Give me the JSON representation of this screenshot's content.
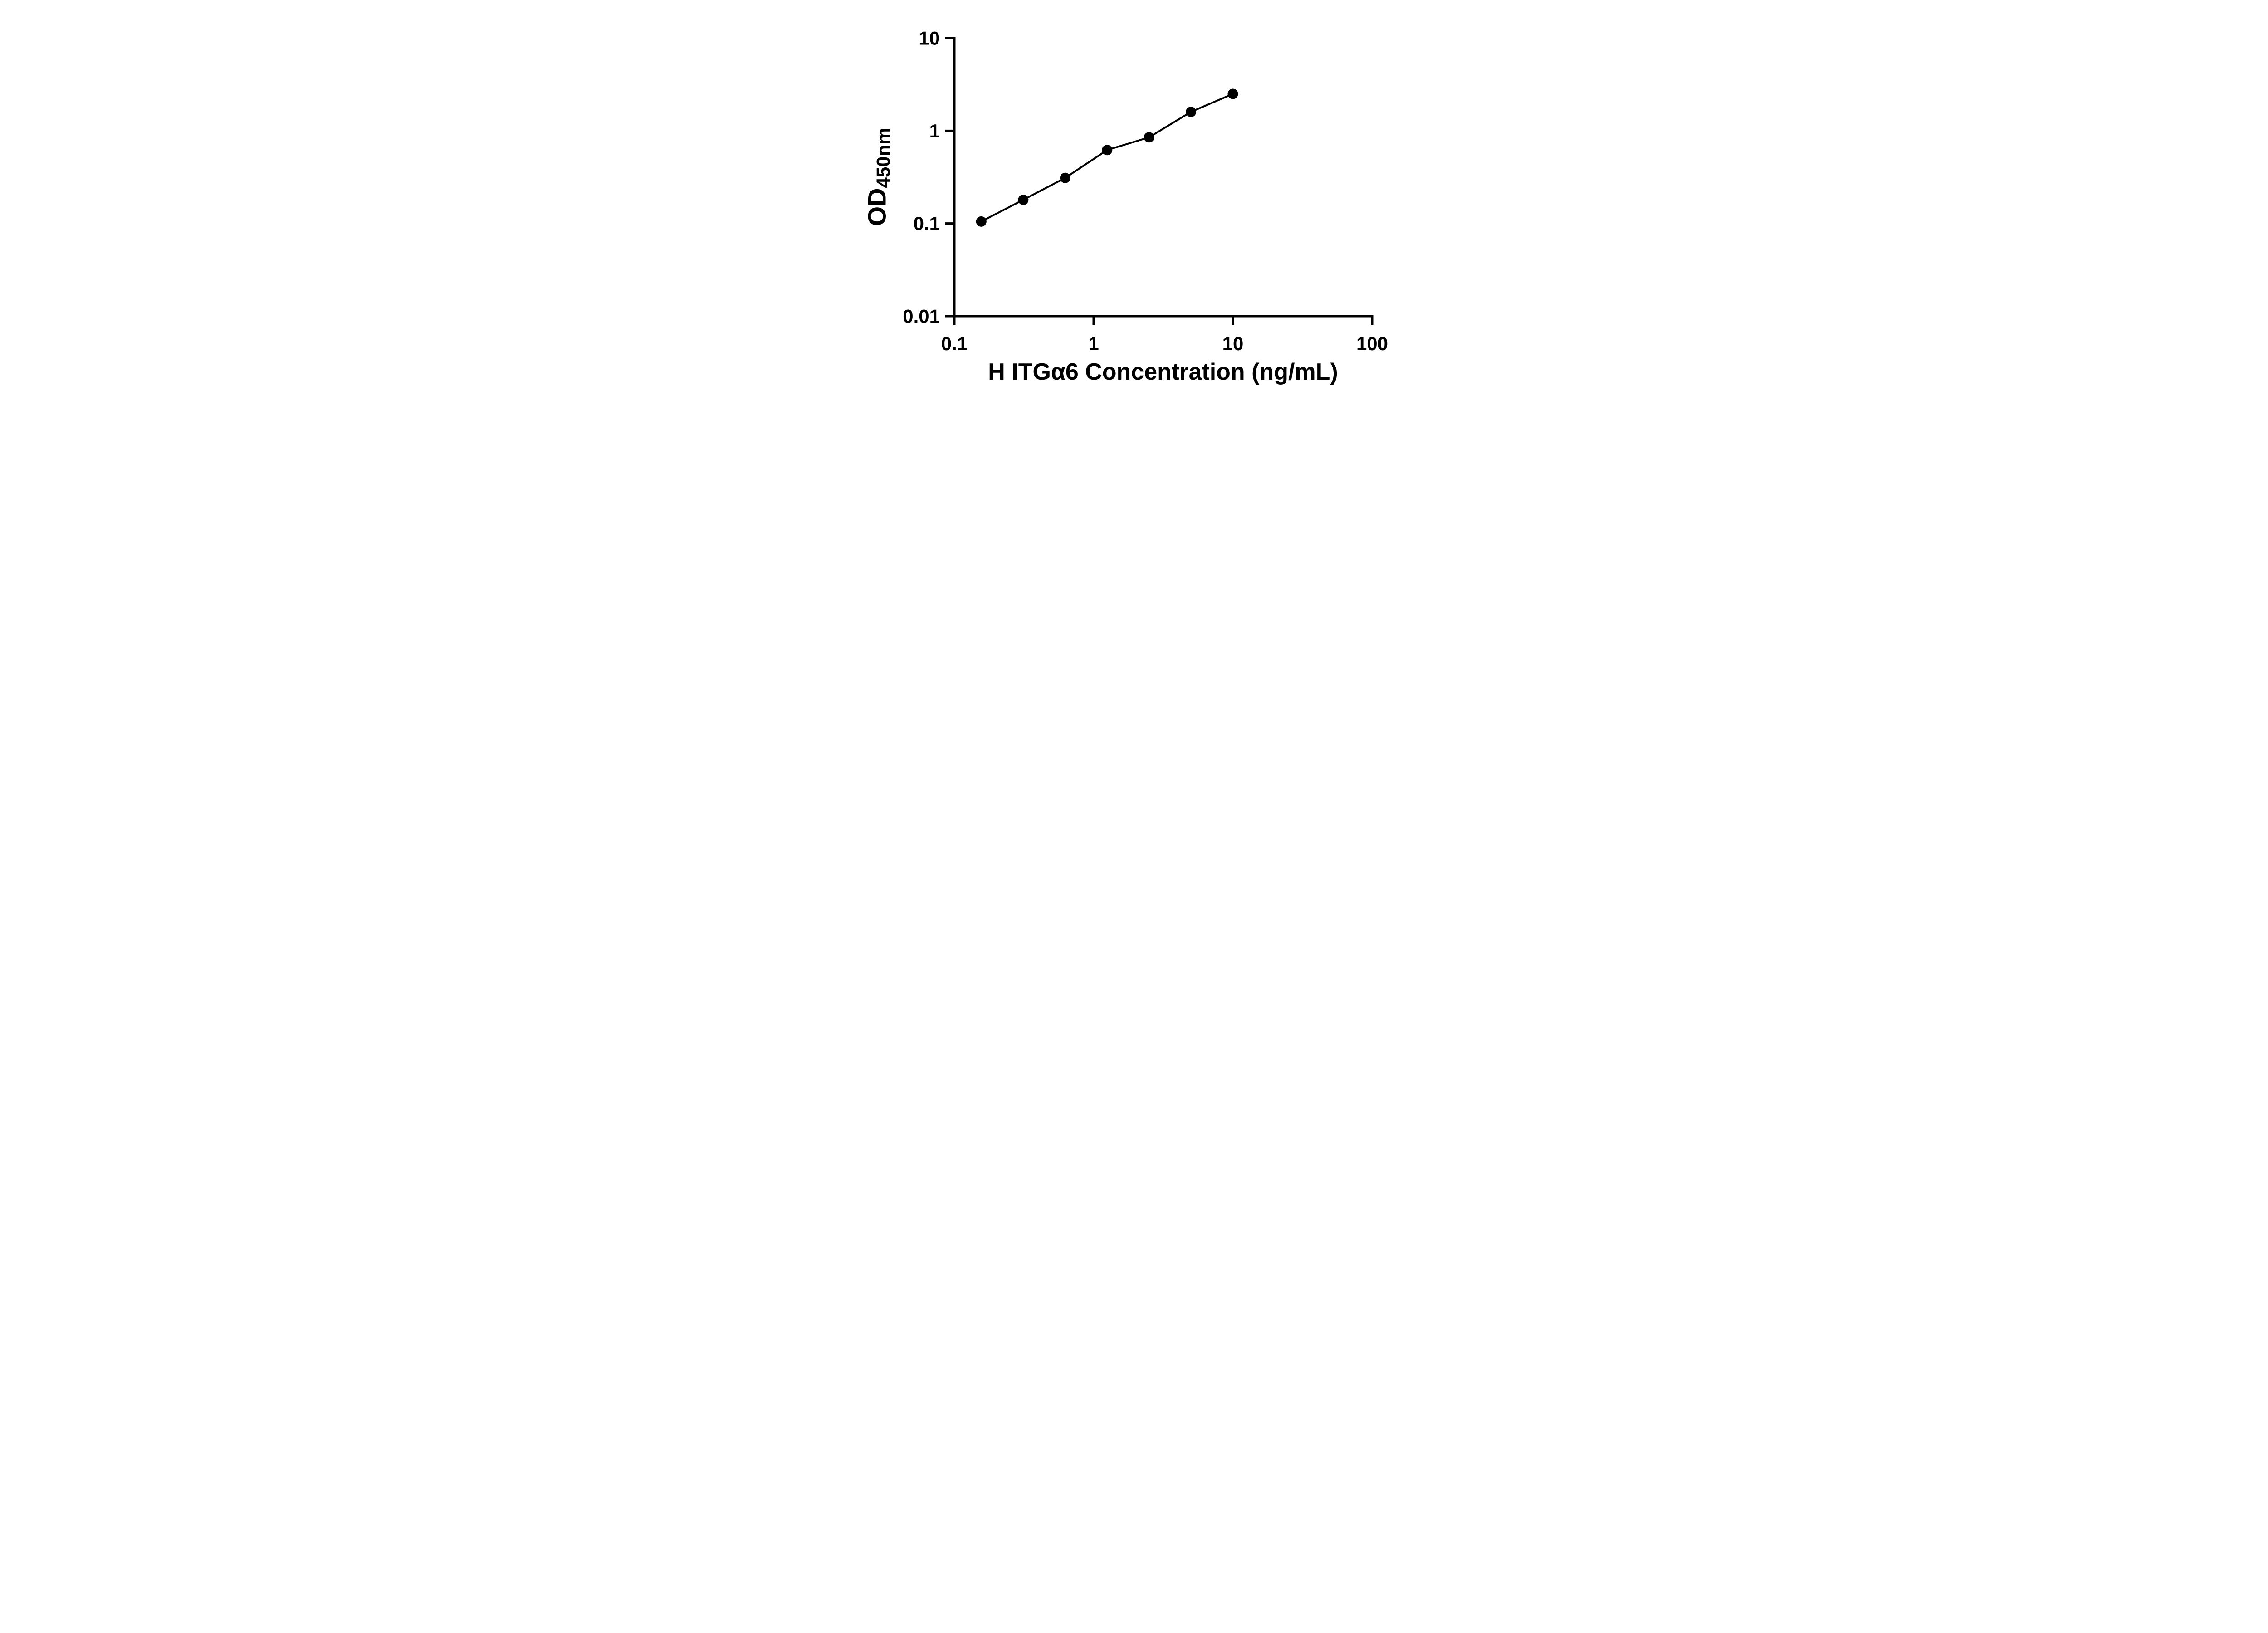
{
  "figure": {
    "background_color": "#ffffff",
    "accent_color": "#000000"
  },
  "chart_data": {
    "type": "scatter",
    "title": "",
    "xlabel": "H ITGα6 Concentration (ng/mL)",
    "ylabel_main": "OD",
    "ylabel_sub": "450nm",
    "x_scale": "log",
    "y_scale": "log",
    "xlim": [
      0.1,
      100
    ],
    "ylim": [
      0.01,
      10
    ],
    "x": [
      0.156,
      0.3125,
      0.625,
      1.25,
      2.5,
      5,
      10
    ],
    "y": [
      0.105,
      0.18,
      0.31,
      0.62,
      0.85,
      1.6,
      2.5
    ],
    "line": true,
    "grid": false,
    "legend": null,
    "marker_color": "#000000",
    "line_color": "#000000",
    "x_ticks": [
      0.1,
      1,
      10,
      100
    ],
    "x_tick_labels": [
      "0.1",
      "1",
      "10",
      "100"
    ],
    "y_ticks": [
      0.01,
      0.1,
      1,
      10
    ],
    "y_tick_labels": [
      "0.01",
      "0.1",
      "1",
      "10"
    ]
  }
}
